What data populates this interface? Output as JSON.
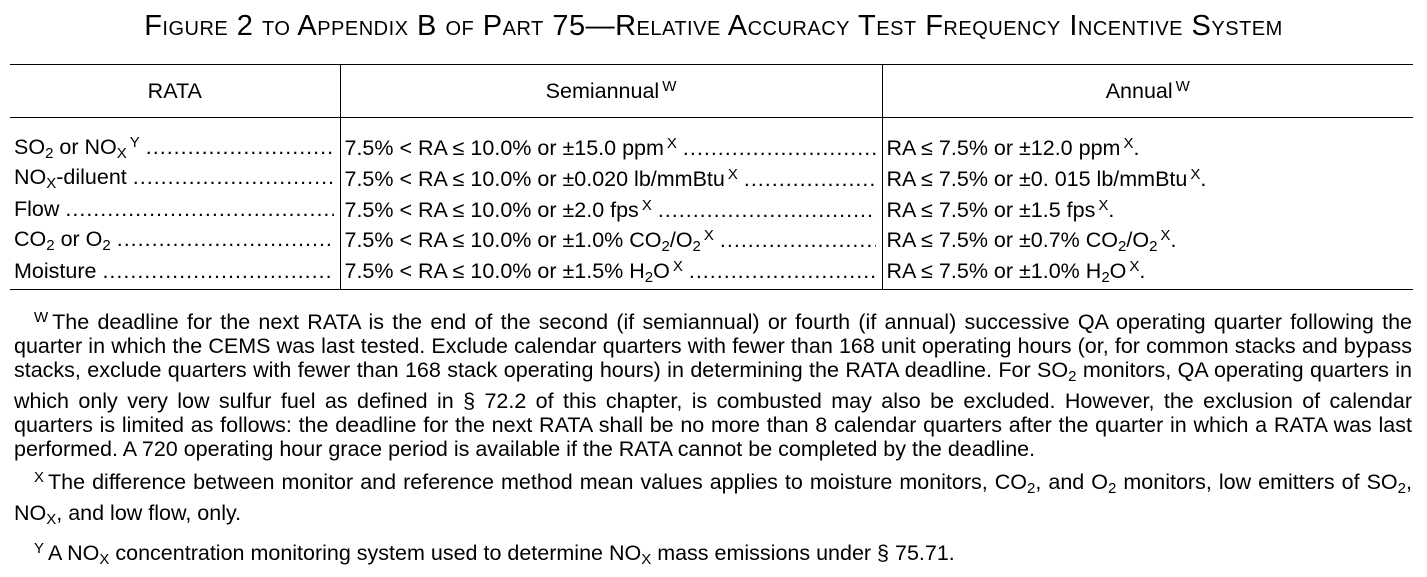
{
  "title": "Figure 2 to Appendix B of Part 75—Relative Accuracy Test Frequency Incentive System",
  "table": {
    "headers": {
      "rata": "RATA",
      "semiannual": "Semiannual",
      "semiannual_mark": "W",
      "annual": "Annual",
      "annual_mark": "W"
    },
    "dots": "...........................................................................................",
    "rows": [
      {
        "rata": [
          "SO",
          "2",
          " or NO",
          "X",
          "Y"
        ],
        "semiannual": [
          "7.5% < RA ≤ 10.0% or ±15.0 ppm",
          "X"
        ],
        "annual": [
          "RA ≤ 7.5% or ±12.0 ppm",
          "X",
          "."
        ]
      },
      {
        "rata": [
          "NO",
          "X",
          "-diluent"
        ],
        "semiannual": [
          "7.5% < RA ≤ 10.0% or ±0.020 lb/mmBtu",
          "X"
        ],
        "annual": [
          "RA ≤ 7.5% or ±0. 015 lb/mmBtu",
          "X",
          "."
        ]
      },
      {
        "rata": [
          "Flow"
        ],
        "semiannual": [
          "7.5% < RA ≤ 10.0% or ±2.0 fps",
          "X"
        ],
        "annual": [
          "RA ≤ 7.5% or ±1.5 fps",
          "X",
          "."
        ]
      },
      {
        "rata": [
          "CO",
          "2",
          " or O",
          "2"
        ],
        "semiannual": [
          "7.5% < RA ≤ 10.0% or ±1.0% CO",
          "2",
          "/O",
          "2",
          "X"
        ],
        "annual": [
          "RA ≤ 7.5% or ±0.7% CO",
          "2",
          "/O",
          "2",
          "X",
          "."
        ]
      },
      {
        "rata": [
          "Moisture"
        ],
        "semiannual": [
          "7.5% < RA ≤ 10.0% or ±1.5% H",
          "2",
          "O",
          "X"
        ],
        "annual": [
          "RA ≤ 7.5% or ±1.0% H",
          "2",
          "O",
          "X",
          "."
        ]
      }
    ]
  },
  "footnotes": {
    "w": {
      "mark": "W",
      "text": "The deadline for the next RATA is the end of the second (if semiannual) or fourth (if annual) successive QA operating quarter following the quarter in which the CEMS was last tested. Exclude calendar quarters with fewer than 168 unit operating hours (or, for common stacks and bypass stacks, exclude quarters with fewer than 168 stack operating hours) in determining the RATA deadline. For SO",
      "sub": "2",
      "text2": " monitors, QA operating quarters in which only very low sulfur fuel as defined in § 72.2 of this chapter, is combusted may also be excluded. However, the exclusion of calendar quarters is limited as follows: the deadline for the next RATA shall be no more than 8 calendar quarters after the quarter in which a RATA was last performed. A 720 operating hour grace period is available if the RATA cannot be completed by the deadline."
    },
    "x": {
      "mark": "X",
      "a": "The difference between monitor and reference method mean values applies to moisture monitors, CO",
      "s1": "2",
      "b": ", and O",
      "s2": "2",
      "c": " monitors, low emitters of SO",
      "s3": "2",
      "d": ", NO",
      "s4": "X",
      "e": ", and low flow, only."
    },
    "y": {
      "mark": "Y",
      "a": "A NO",
      "s1": "X",
      "b": " concentration monitoring system used to determine NO",
      "s2": "X",
      "c": " mass emissions under § 75.71."
    }
  }
}
